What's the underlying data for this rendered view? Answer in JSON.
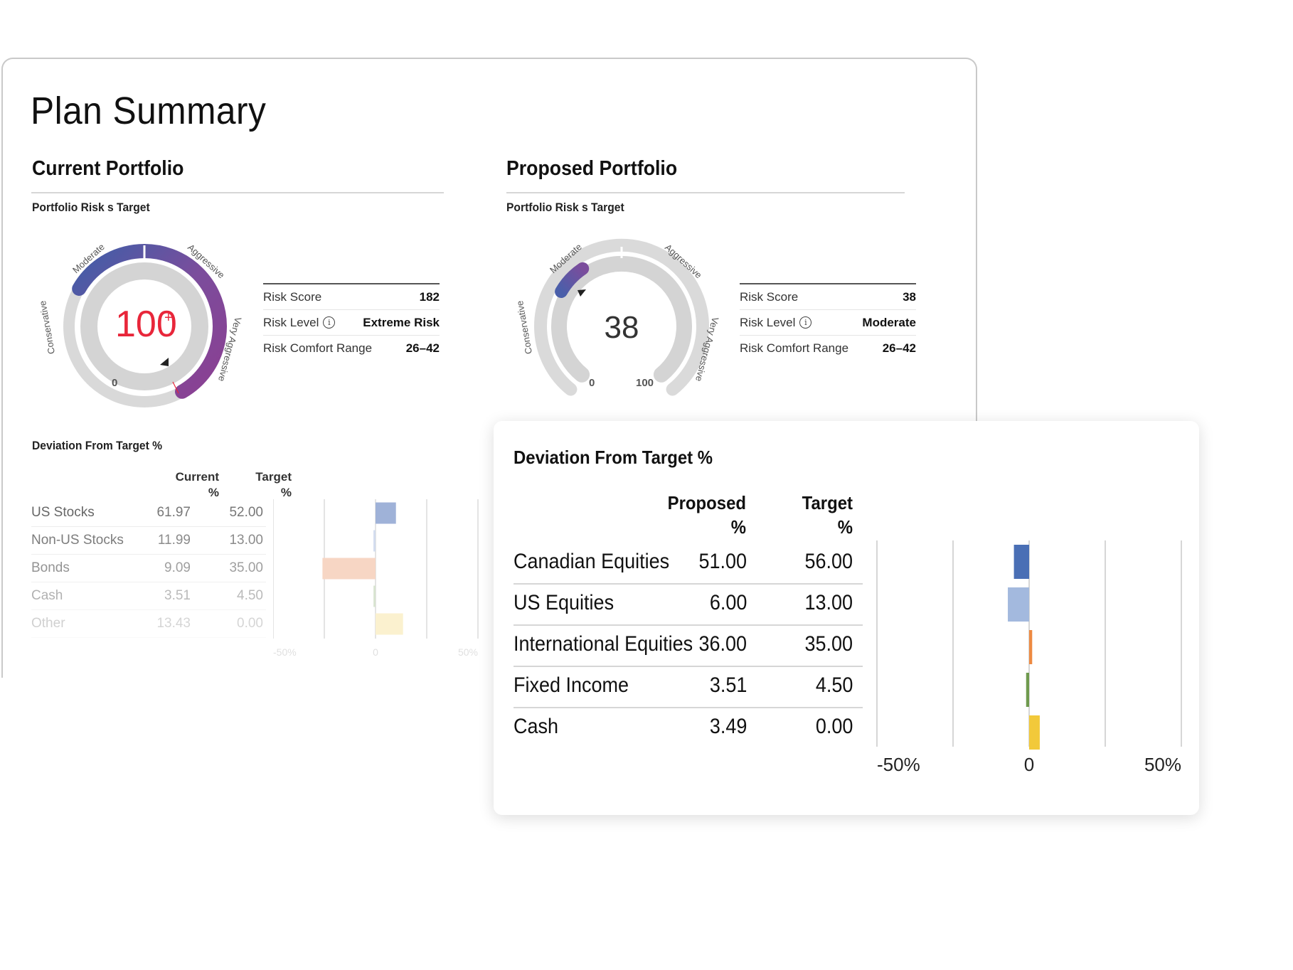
{
  "page": {
    "title": "Plan Summary"
  },
  "current": {
    "heading": "Current Portfolio",
    "subheading": "Portfolio Risk s Target",
    "gauge": {
      "value_text": "100",
      "value_suffix": "+",
      "zero_label": "0",
      "zones": [
        "Conservative",
        "Moderate",
        "Aggressive",
        "Very Aggressive"
      ],
      "fill_level": 1.0,
      "value_color": "#e8263a"
    },
    "metrics": [
      {
        "label": "Risk Score",
        "value": "182"
      },
      {
        "label": "Risk Level",
        "value": "Extreme Risk",
        "icon": "info-icon"
      },
      {
        "label": "Risk Comfort Range",
        "value": "26–42"
      }
    ],
    "deviation": {
      "title": "Deviation From Target %",
      "col_current": [
        "Current",
        "%"
      ],
      "col_target": [
        "Target",
        "%"
      ],
      "rows": [
        {
          "name": "US Stocks",
          "current": "61.97",
          "target": "52.00"
        },
        {
          "name": "Non-US Stocks",
          "current": "11.99",
          "target": "13.00"
        },
        {
          "name": "Bonds",
          "current": "9.09",
          "target": "35.00"
        },
        {
          "name": "Cash",
          "current": "3.51",
          "target": "4.50"
        },
        {
          "name": "Other",
          "current": "13.43",
          "target": "0.00"
        }
      ],
      "axis": [
        "-50%",
        "0",
        "50%"
      ]
    }
  },
  "proposed": {
    "heading": "Proposed Portfolio",
    "subheading": "Portfolio Risk s Target",
    "gauge": {
      "value_text": "38",
      "zero_label": "0",
      "hundred_label": "100",
      "zones": [
        "Conservative",
        "Moderate",
        "Aggressive",
        "Very Aggressive"
      ],
      "fill_level": 0.38
    },
    "metrics": [
      {
        "label": "Risk Score",
        "value": "38"
      },
      {
        "label": "Risk Level",
        "value": "Moderate",
        "icon": "info-icon"
      },
      {
        "label": "Risk Comfort Range",
        "value": "26–42"
      }
    ],
    "deviation": {
      "title": "Deviation From Target %",
      "col_proposed": [
        "Proposed",
        "%"
      ],
      "col_target": [
        "Target",
        "%"
      ],
      "rows": [
        {
          "name": "Canadian Equities",
          "proposed": "51.00",
          "target": "56.00"
        },
        {
          "name": "US Equities",
          "proposed": "6.00",
          "target": "13.00"
        },
        {
          "name": "International Equities",
          "proposed": "36.00",
          "target": "35.00"
        },
        {
          "name": "Fixed Income",
          "proposed": "3.51",
          "target": "4.50"
        },
        {
          "name": "Cash",
          "proposed": "3.49",
          "target": "0.00"
        }
      ],
      "axis": [
        "-50%",
        "0",
        "50%"
      ]
    }
  },
  "chart_data": [
    {
      "type": "bar",
      "orientation": "horizontal",
      "title": "Deviation From Target %",
      "categories": [
        "US Stocks",
        "Non-US Stocks",
        "Bonds",
        "Cash",
        "Other"
      ],
      "values": [
        9.97,
        -1.01,
        -25.91,
        -0.99,
        13.43
      ],
      "colors": [
        "#9fb2d8",
        "#d2dcee",
        "#f7d6c4",
        "#d8e4d0",
        "#fbf1cf"
      ],
      "xlim": [
        -50,
        50
      ],
      "xticks": [
        "-50%",
        "0",
        "50%"
      ]
    },
    {
      "type": "bar",
      "orientation": "horizontal",
      "title": "Deviation From Target %",
      "categories": [
        "Canadian Equities",
        "US Equities",
        "International Equities",
        "Fixed Income",
        "Cash"
      ],
      "values": [
        -5,
        -7,
        1,
        -0.99,
        3.49
      ],
      "colors": [
        "#4a6fb5",
        "#a3b9de",
        "#ee8a42",
        "#6f9a4e",
        "#f2c93a"
      ],
      "xlim": [
        -50,
        50
      ],
      "xticks": [
        "-50%",
        "0",
        "50%"
      ]
    }
  ]
}
